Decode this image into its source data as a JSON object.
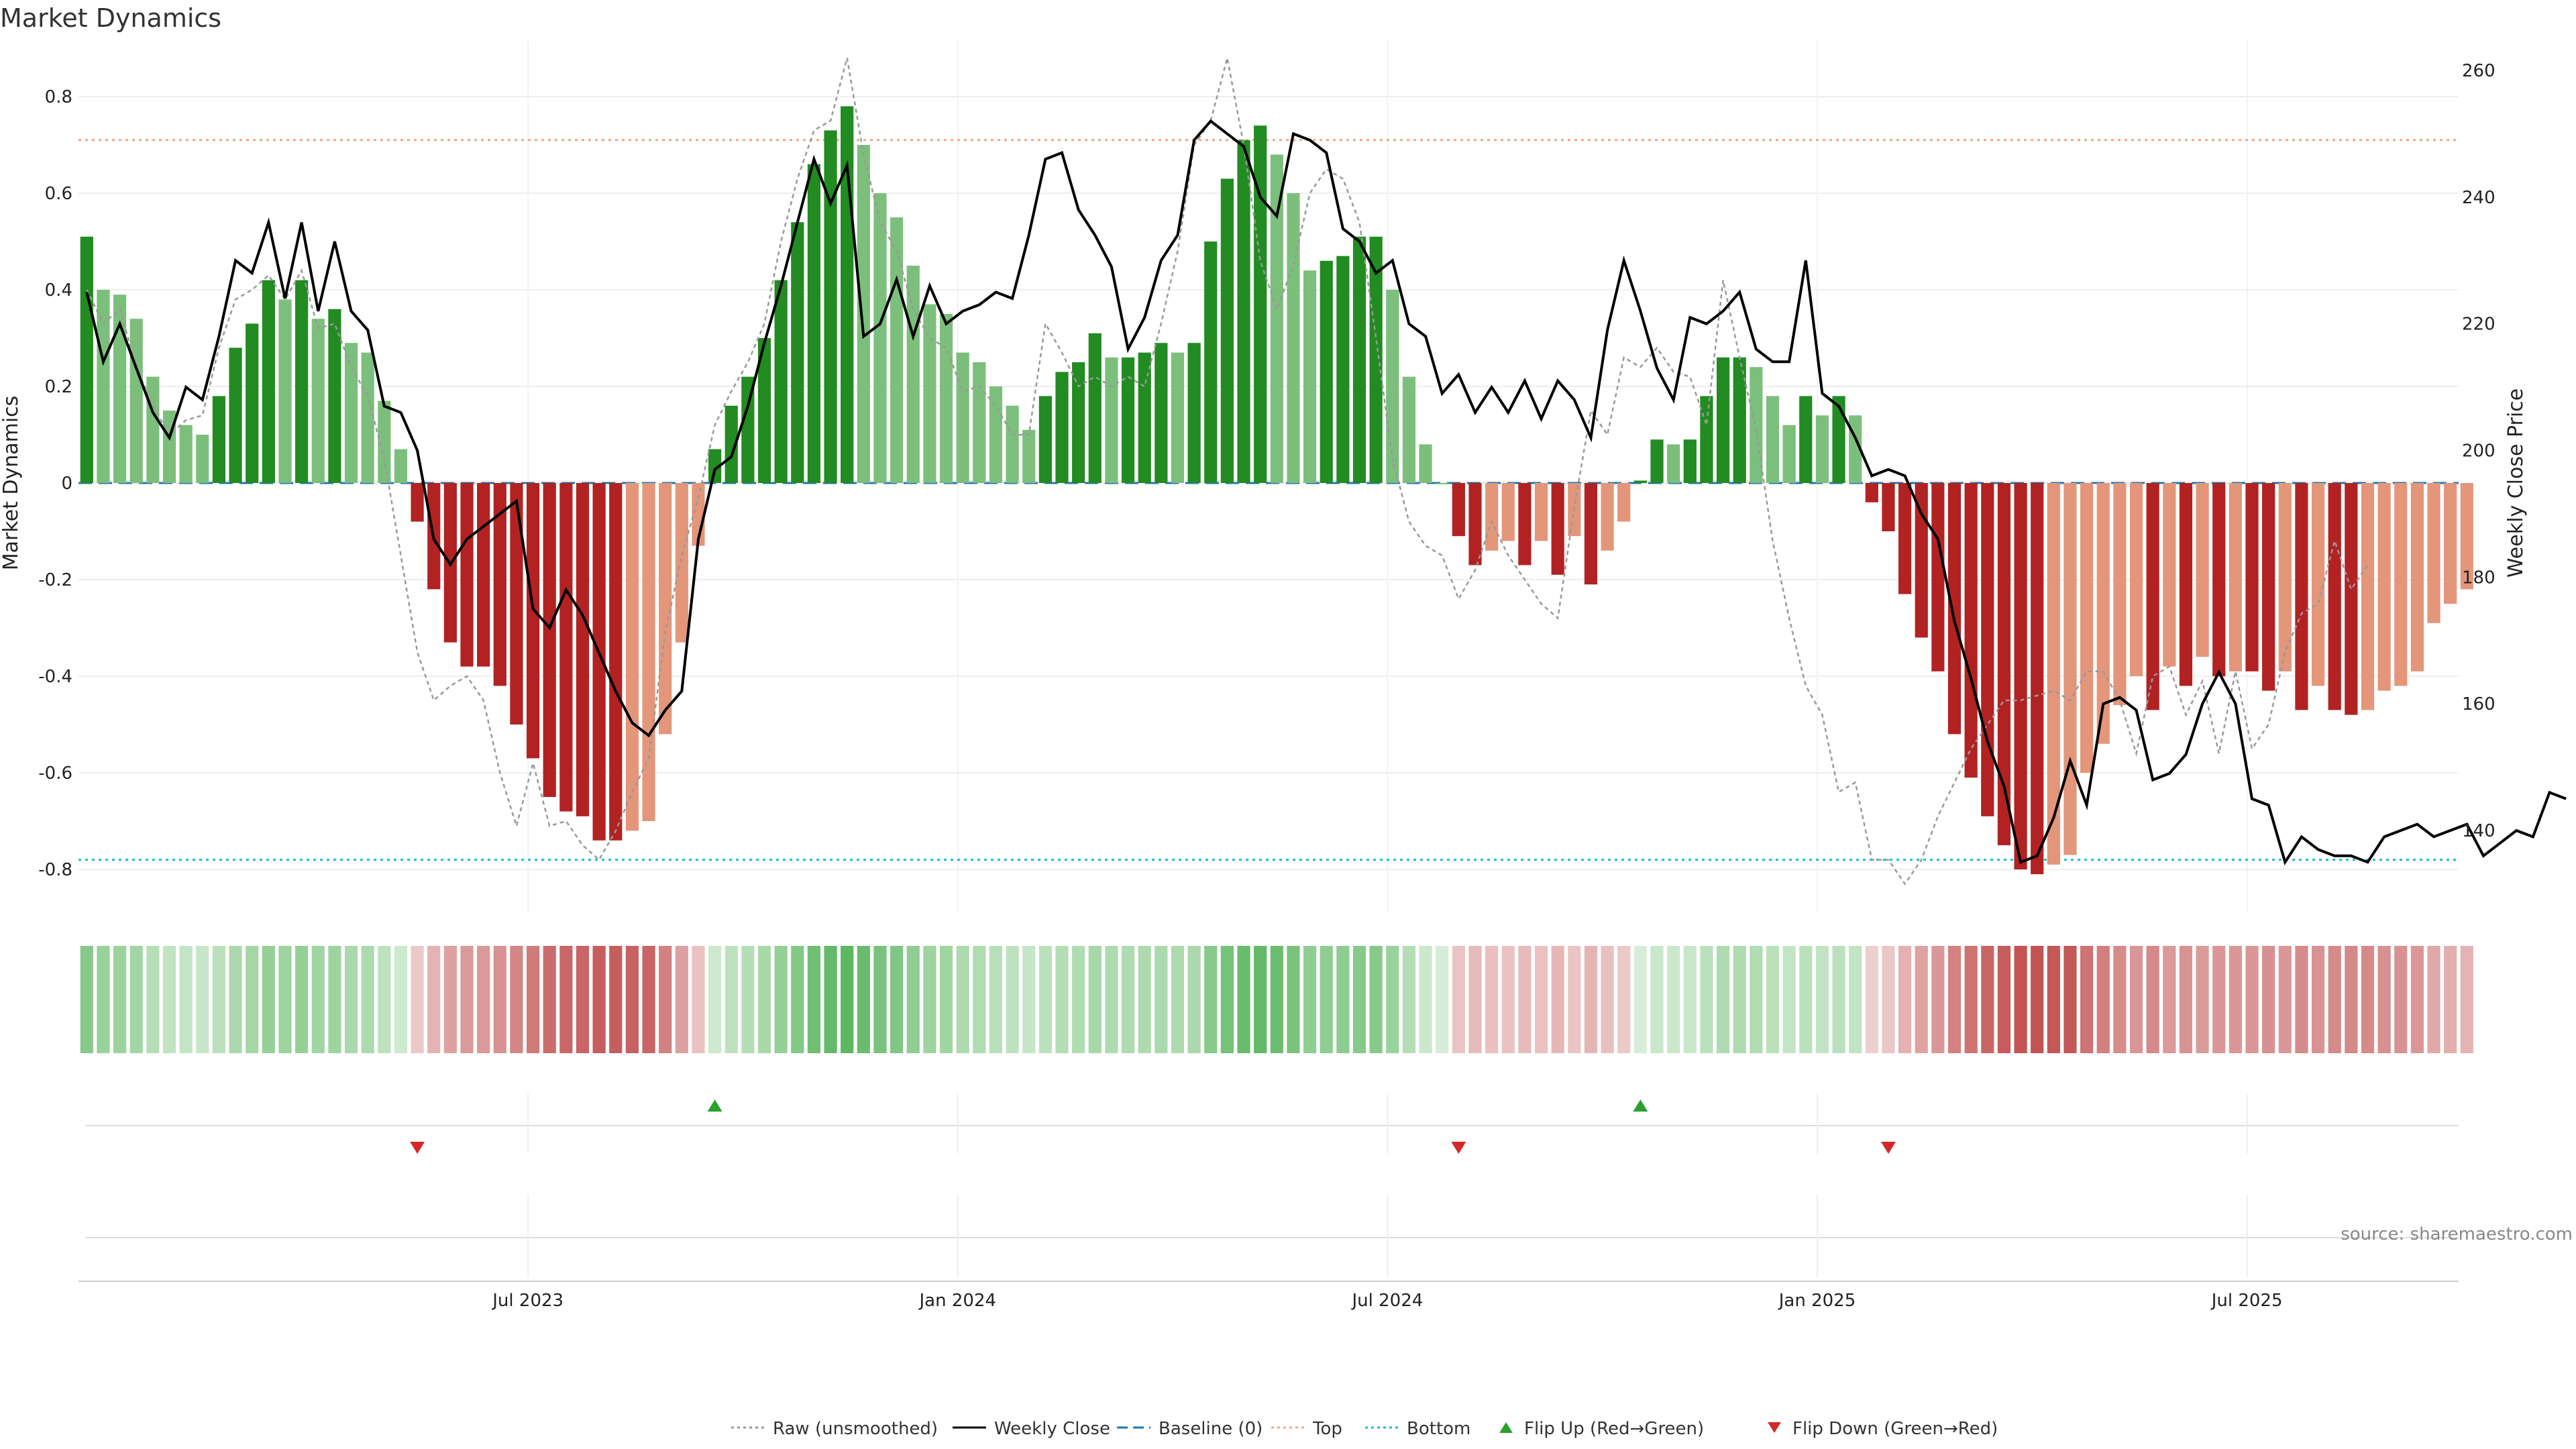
{
  "chart_data": {
    "type": "bar",
    "title": "Market Dynamics",
    "ylabel_left": "Market Dynamics",
    "ylabel_right": "Weekly Close Price",
    "ylim_left": [
      -0.88,
      0.9
    ],
    "ylim_right": [
      130,
      264
    ],
    "left_ticks": [
      0.8,
      0.6,
      0.4,
      0.2,
      0,
      -0.2,
      -0.4,
      -0.6,
      -0.8
    ],
    "left_tick_labels": [
      "0.8",
      "0.6",
      "0.4",
      "0.2",
      "0",
      "-0.2",
      "-0.4",
      "-0.6",
      "-0.8"
    ],
    "right_ticks": [
      260,
      240,
      220,
      200,
      180,
      160,
      140
    ],
    "right_tick_labels": [
      "260",
      "240",
      "220",
      "200",
      "180",
      "160",
      "140"
    ],
    "x_tick_weeks": [
      26.7,
      52.7,
      78.7,
      104.7,
      130.7
    ],
    "x_tick_labels": [
      "Jul 2023",
      "Jan 2024",
      "Jul 2024",
      "Jan 2025",
      "Jul 2025"
    ],
    "weeks": 144,
    "top_line": 0.71,
    "bottom_line": -0.78,
    "baseline": 0,
    "bar_values": [
      0.51,
      0.4,
      0.39,
      0.34,
      0.22,
      0.15,
      0.12,
      0.1,
      0.18,
      0.28,
      0.33,
      0.42,
      0.38,
      0.42,
      0.34,
      0.36,
      0.29,
      0.27,
      0.17,
      0.07,
      -0.08,
      -0.22,
      -0.33,
      -0.38,
      -0.38,
      -0.42,
      -0.5,
      -0.57,
      -0.65,
      -0.68,
      -0.69,
      -0.74,
      -0.74,
      -0.72,
      -0.7,
      -0.52,
      -0.33,
      -0.13,
      0.07,
      0.16,
      0.22,
      0.3,
      0.42,
      0.54,
      0.66,
      0.73,
      0.78,
      0.7,
      0.6,
      0.55,
      0.45,
      0.37,
      0.35,
      0.27,
      0.25,
      0.2,
      0.16,
      0.11,
      0.18,
      0.23,
      0.25,
      0.31,
      0.26,
      0.26,
      0.27,
      0.29,
      0.27,
      0.29,
      0.5,
      0.63,
      0.71,
      0.74,
      0.68,
      0.6,
      0.44,
      0.46,
      0.47,
      0.51,
      0.51,
      0.4,
      0.22,
      0.08,
      0,
      -0.11,
      -0.17,
      -0.14,
      -0.12,
      -0.17,
      -0.12,
      -0.19,
      -0.11,
      -0.21,
      -0.14,
      -0.08,
      0.005,
      0.09,
      0.08,
      0.09,
      0.18,
      0.26,
      0.26,
      0.24,
      0.18,
      0.12,
      0.18,
      0.14,
      0.18,
      0.14,
      -0.04,
      -0.1,
      -0.23,
      -0.32,
      -0.39,
      -0.52,
      -0.61,
      -0.69,
      -0.75,
      -0.8,
      -0.81,
      -0.79,
      -0.77,
      -0.6,
      -0.54,
      -0.46,
      -0.4,
      -0.47,
      -0.38,
      -0.42,
      -0.36,
      -0.4,
      -0.39,
      -0.39,
      -0.43,
      -0.39,
      -0.47,
      -0.42,
      -0.47,
      -0.48,
      -0.47,
      -0.43,
      -0.42,
      -0.39,
      -0.29,
      -0.25,
      -0.22
    ],
    "raw_values": [
      0.4,
      0.33,
      0.36,
      0.24,
      0.16,
      0.1,
      0.13,
      0.14,
      0.28,
      0.38,
      0.4,
      0.43,
      0.38,
      0.44,
      0.32,
      0.33,
      0.24,
      0.18,
      0.05,
      -0.15,
      -0.35,
      -0.45,
      -0.42,
      -0.4,
      -0.45,
      -0.6,
      -0.71,
      -0.58,
      -0.71,
      -0.7,
      -0.75,
      -0.78,
      -0.72,
      -0.64,
      -0.57,
      -0.31,
      -0.15,
      -0.03,
      0.12,
      0.19,
      0.25,
      0.33,
      0.5,
      0.63,
      0.73,
      0.75,
      0.88,
      0.68,
      0.54,
      0.48,
      0.36,
      0.3,
      0.28,
      0.19,
      0.2,
      0.16,
      0.1,
      0.1,
      0.33,
      0.27,
      0.2,
      0.22,
      0.2,
      0.22,
      0.2,
      0.33,
      0.48,
      0.7,
      0.75,
      0.88,
      0.7,
      0.46,
      0.36,
      0.45,
      0.6,
      0.65,
      0.63,
      0.54,
      0.3,
      0.05,
      -0.08,
      -0.13,
      -0.15,
      -0.24,
      -0.18,
      -0.08,
      -0.15,
      -0.2,
      -0.25,
      -0.28,
      -0.05,
      0.15,
      0.1,
      0.26,
      0.24,
      0.28,
      0.23,
      0.22,
      0.12,
      0.42,
      0.26,
      0.11,
      -0.12,
      -0.28,
      -0.42,
      -0.48,
      -0.64,
      -0.62,
      -0.78,
      -0.78,
      -0.83,
      -0.78,
      -0.69,
      -0.62,
      -0.55,
      -0.5,
      -0.45,
      -0.45,
      -0.44,
      -0.43,
      -0.45,
      -0.39,
      -0.39,
      -0.45,
      -0.56,
      -0.4,
      -0.38,
      -0.48,
      -0.41,
      -0.56,
      -0.39,
      -0.55,
      -0.5,
      -0.35,
      -0.27,
      -0.25,
      -0.12,
      -0.22,
      -0.17
    ],
    "close_values": [
      225,
      214,
      220,
      213,
      206,
      202,
      210,
      208,
      218,
      230,
      228,
      236,
      224,
      236,
      222,
      233,
      222,
      219,
      207,
      206,
      200,
      186,
      182,
      186,
      188,
      190,
      192,
      175,
      172,
      178,
      174,
      168,
      162,
      157,
      155,
      159,
      162,
      186,
      197,
      199,
      207,
      217,
      226,
      236,
      246,
      239,
      245,
      218,
      220,
      227,
      218,
      226,
      220,
      222,
      223,
      225,
      224,
      234,
      246,
      247,
      238,
      234,
      229,
      216,
      221,
      230,
      234,
      249,
      252,
      250,
      248,
      240,
      237,
      250,
      249,
      247,
      235,
      233,
      228,
      230,
      220,
      218,
      209,
      212,
      206,
      210,
      206,
      211,
      205,
      211,
      208,
      202,
      219,
      230,
      222,
      213,
      208,
      221,
      220,
      222,
      225,
      216,
      214,
      214,
      230,
      209,
      207,
      202,
      196,
      197,
      196,
      190,
      186,
      173,
      164,
      154,
      147,
      135,
      136,
      142,
      151,
      144,
      160,
      161,
      159,
      148,
      149,
      152,
      160,
      165,
      160,
      145,
      144,
      135,
      139,
      137,
      136,
      136,
      135,
      139,
      140,
      141,
      139,
      140,
      141,
      136,
      138,
      140,
      139,
      146,
      145
    ]
  },
  "legend": [
    {
      "label": "Raw (unsmoothed)",
      "kind": "dotted",
      "color": "#999999"
    },
    {
      "label": "Weekly Close",
      "kind": "solid",
      "color": "#000000"
    },
    {
      "label": "Baseline (0)",
      "kind": "dashed",
      "color": "#1f77b4"
    },
    {
      "label": "Top",
      "kind": "dotted",
      "color": "#f4a582"
    },
    {
      "label": "Bottom",
      "kind": "dotted",
      "color": "#17becf"
    },
    {
      "label": "Flip Up (Red→Green)",
      "kind": "triangle-up",
      "color": "#2ca02c"
    },
    {
      "label": "Flip Down (Green→Red)",
      "kind": "triangle-down",
      "color": "#d62728"
    }
  ],
  "flips": {
    "up_weeks": [
      38,
      94
    ],
    "down_weeks": [
      20,
      83,
      109
    ]
  },
  "colors": {
    "strong_green": "#228b22",
    "light_green": "#7cbf7c",
    "strong_red": "#b22222",
    "light_red": "#e4967a",
    "raw_line": "#999999",
    "close_line": "#000000",
    "baseline": "#1f77b4",
    "top": "#f4a582",
    "bottom": "#17becf"
  },
  "source_text": "source: sharemaestro.com"
}
